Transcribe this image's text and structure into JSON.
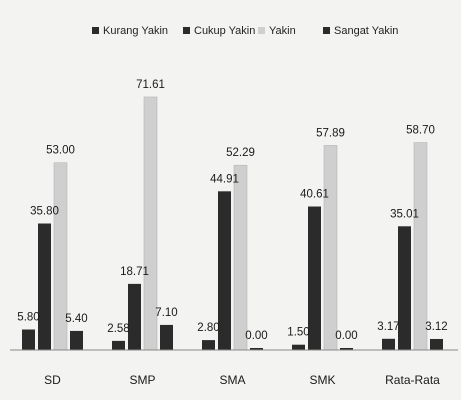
{
  "chart_data": {
    "type": "bar",
    "title": "",
    "xlabel": "",
    "ylabel": "",
    "ylim": [
      0,
      75
    ],
    "grid": false,
    "legend_position": "top",
    "categories": [
      "SD",
      "SMP",
      "SMA",
      "SMK",
      "Rata-Rata"
    ],
    "series": [
      {
        "name": "Kurang Yakin",
        "color": "#2b2b2b",
        "values": [
          5.8,
          2.58,
          2.8,
          1.5,
          3.17
        ],
        "labels": [
          "5.80",
          "2.58",
          "2.80",
          "1.50",
          "3.17"
        ]
      },
      {
        "name": "Cukup Yakin",
        "color": "#2b2b2b",
        "values": [
          35.8,
          18.71,
          44.91,
          40.61,
          35.01
        ],
        "labels": [
          "35.80",
          "18.71",
          "44.91",
          "40.61",
          "35.01"
        ]
      },
      {
        "name": "Yakin",
        "color": "#cfcfcf",
        "values": [
          53.0,
          71.61,
          52.29,
          57.89,
          58.7
        ],
        "labels": [
          "53.00",
          "71.61",
          "52.29",
          "57.89",
          "58.70"
        ]
      },
      {
        "name": "Sangat Yakin",
        "color": "#2b2b2b",
        "values": [
          5.4,
          7.1,
          0.0,
          0.0,
          3.12
        ],
        "labels": [
          "5.40",
          "7.10",
          "0.00",
          "0.00",
          "3.12"
        ]
      }
    ]
  }
}
